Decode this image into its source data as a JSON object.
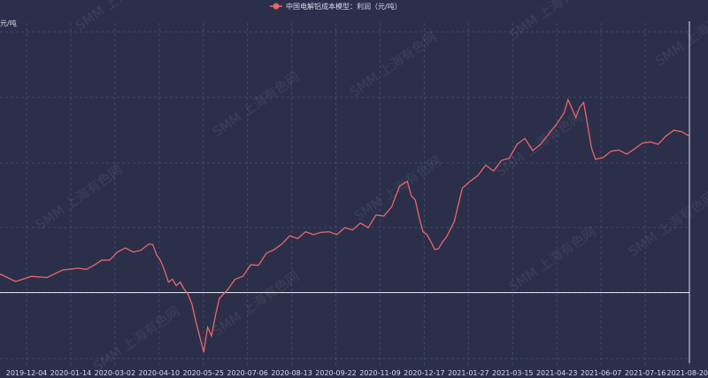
{
  "chart_data": {
    "type": "line",
    "title": "",
    "legend": {
      "position": "top-center"
    },
    "ylabel": "元/吨",
    "xlabel": "",
    "x_tick_labels": [
      "2019-12-04",
      "2020-01-14",
      "2020-03-02",
      "2020-04-10",
      "2020-05-25",
      "2020-07-06",
      "2020-08-13",
      "2020-09-22",
      "2020-11-09",
      "2020-12-17",
      "2021-01-27",
      "2021-03-15",
      "2021-04-23",
      "2021-06-07",
      "2021-07-16",
      "2021-08-20"
    ],
    "ylim": [
      -1200,
      4500
    ],
    "grid": true,
    "series": [
      {
        "name": "中国电解铝成本模型：利润（元/吨）",
        "color": "#e8676a",
        "points": [
          [
            0,
            320
          ],
          [
            4,
            190
          ],
          [
            8,
            280
          ],
          [
            12,
            260
          ],
          [
            16,
            390
          ],
          [
            20,
            420
          ],
          [
            22,
            400
          ],
          [
            24,
            470
          ],
          [
            26,
            560
          ],
          [
            28,
            560
          ],
          [
            30,
            700
          ],
          [
            32,
            770
          ],
          [
            34,
            700
          ],
          [
            36,
            730
          ],
          [
            38,
            840
          ],
          [
            39,
            830
          ],
          [
            40,
            650
          ],
          [
            41,
            550
          ],
          [
            42,
            380
          ],
          [
            43,
            180
          ],
          [
            44,
            230
          ],
          [
            45,
            120
          ],
          [
            46,
            180
          ],
          [
            47,
            60
          ],
          [
            48,
            -30
          ],
          [
            49,
            -200
          ],
          [
            50,
            -500
          ],
          [
            51,
            -760
          ],
          [
            52,
            -1030
          ],
          [
            53,
            -600
          ],
          [
            54,
            -750
          ],
          [
            55,
            -400
          ],
          [
            56,
            -100
          ],
          [
            58,
            40
          ],
          [
            60,
            230
          ],
          [
            62,
            280
          ],
          [
            64,
            480
          ],
          [
            66,
            470
          ],
          [
            68,
            680
          ],
          [
            70,
            740
          ],
          [
            72,
            840
          ],
          [
            74,
            980
          ],
          [
            76,
            930
          ],
          [
            78,
            1050
          ],
          [
            80,
            1000
          ],
          [
            82,
            1040
          ],
          [
            84,
            1050
          ],
          [
            86,
            1000
          ],
          [
            88,
            1120
          ],
          [
            90,
            1080
          ],
          [
            92,
            1200
          ],
          [
            94,
            1120
          ],
          [
            96,
            1340
          ],
          [
            98,
            1320
          ],
          [
            100,
            1480
          ],
          [
            102,
            1840
          ],
          [
            104,
            1920
          ],
          [
            105,
            1670
          ],
          [
            106,
            1600
          ],
          [
            107,
            1300
          ],
          [
            108,
            1050
          ],
          [
            109,
            1000
          ],
          [
            110,
            880
          ],
          [
            111,
            740
          ],
          [
            112,
            760
          ],
          [
            113,
            880
          ],
          [
            114,
            960
          ],
          [
            116,
            1230
          ],
          [
            118,
            1800
          ],
          [
            120,
            1920
          ],
          [
            122,
            2020
          ],
          [
            124,
            2200
          ],
          [
            126,
            2100
          ],
          [
            128,
            2280
          ],
          [
            130,
            2320
          ],
          [
            132,
            2560
          ],
          [
            134,
            2660
          ],
          [
            136,
            2450
          ],
          [
            138,
            2560
          ],
          [
            140,
            2730
          ],
          [
            142,
            2900
          ],
          [
            144,
            3100
          ],
          [
            145,
            3330
          ],
          [
            146,
            3180
          ],
          [
            147,
            3020
          ],
          [
            148,
            3200
          ],
          [
            149,
            3280
          ],
          [
            150,
            2900
          ],
          [
            151,
            2500
          ],
          [
            152,
            2300
          ],
          [
            154,
            2330
          ],
          [
            156,
            2440
          ],
          [
            158,
            2460
          ],
          [
            160,
            2390
          ],
          [
            162,
            2480
          ],
          [
            164,
            2580
          ],
          [
            166,
            2600
          ],
          [
            168,
            2560
          ],
          [
            170,
            2700
          ],
          [
            172,
            2800
          ],
          [
            174,
            2780
          ],
          [
            176,
            2700
          ]
        ]
      }
    ],
    "watermark": "SMM 上海有色网"
  }
}
